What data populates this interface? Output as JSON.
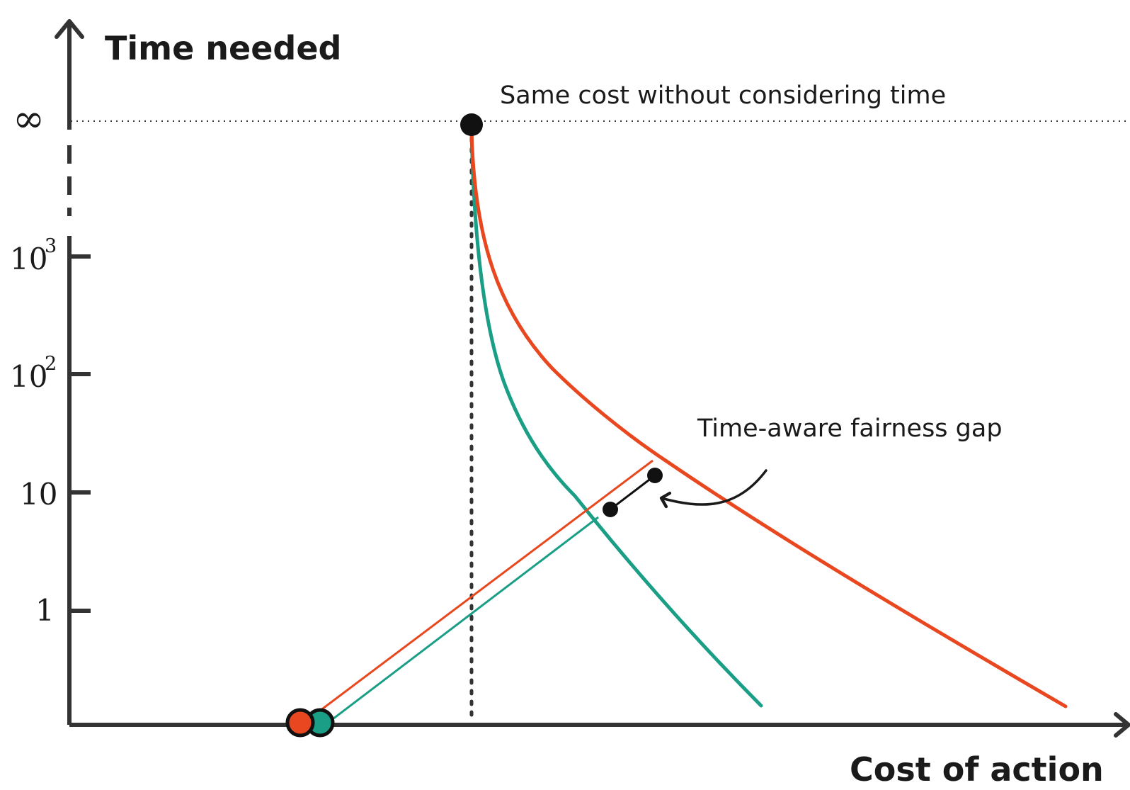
{
  "labels": {
    "y_axis": "Time needed",
    "x_axis": "Cost of action",
    "same_cost": "Same cost without considering time",
    "fairness_gap": "Time-aware fairness gap"
  },
  "y_ticks": [
    {
      "base": "∞",
      "sup": ""
    },
    {
      "base": "10",
      "sup": "3"
    },
    {
      "base": "10",
      "sup": "2"
    },
    {
      "base": "10",
      "sup": ""
    },
    {
      "base": "1",
      "sup": ""
    }
  ],
  "colors": {
    "axis": "#333333",
    "red": "#e8471f",
    "teal": "#1a9e86",
    "marker": "#111111"
  }
}
